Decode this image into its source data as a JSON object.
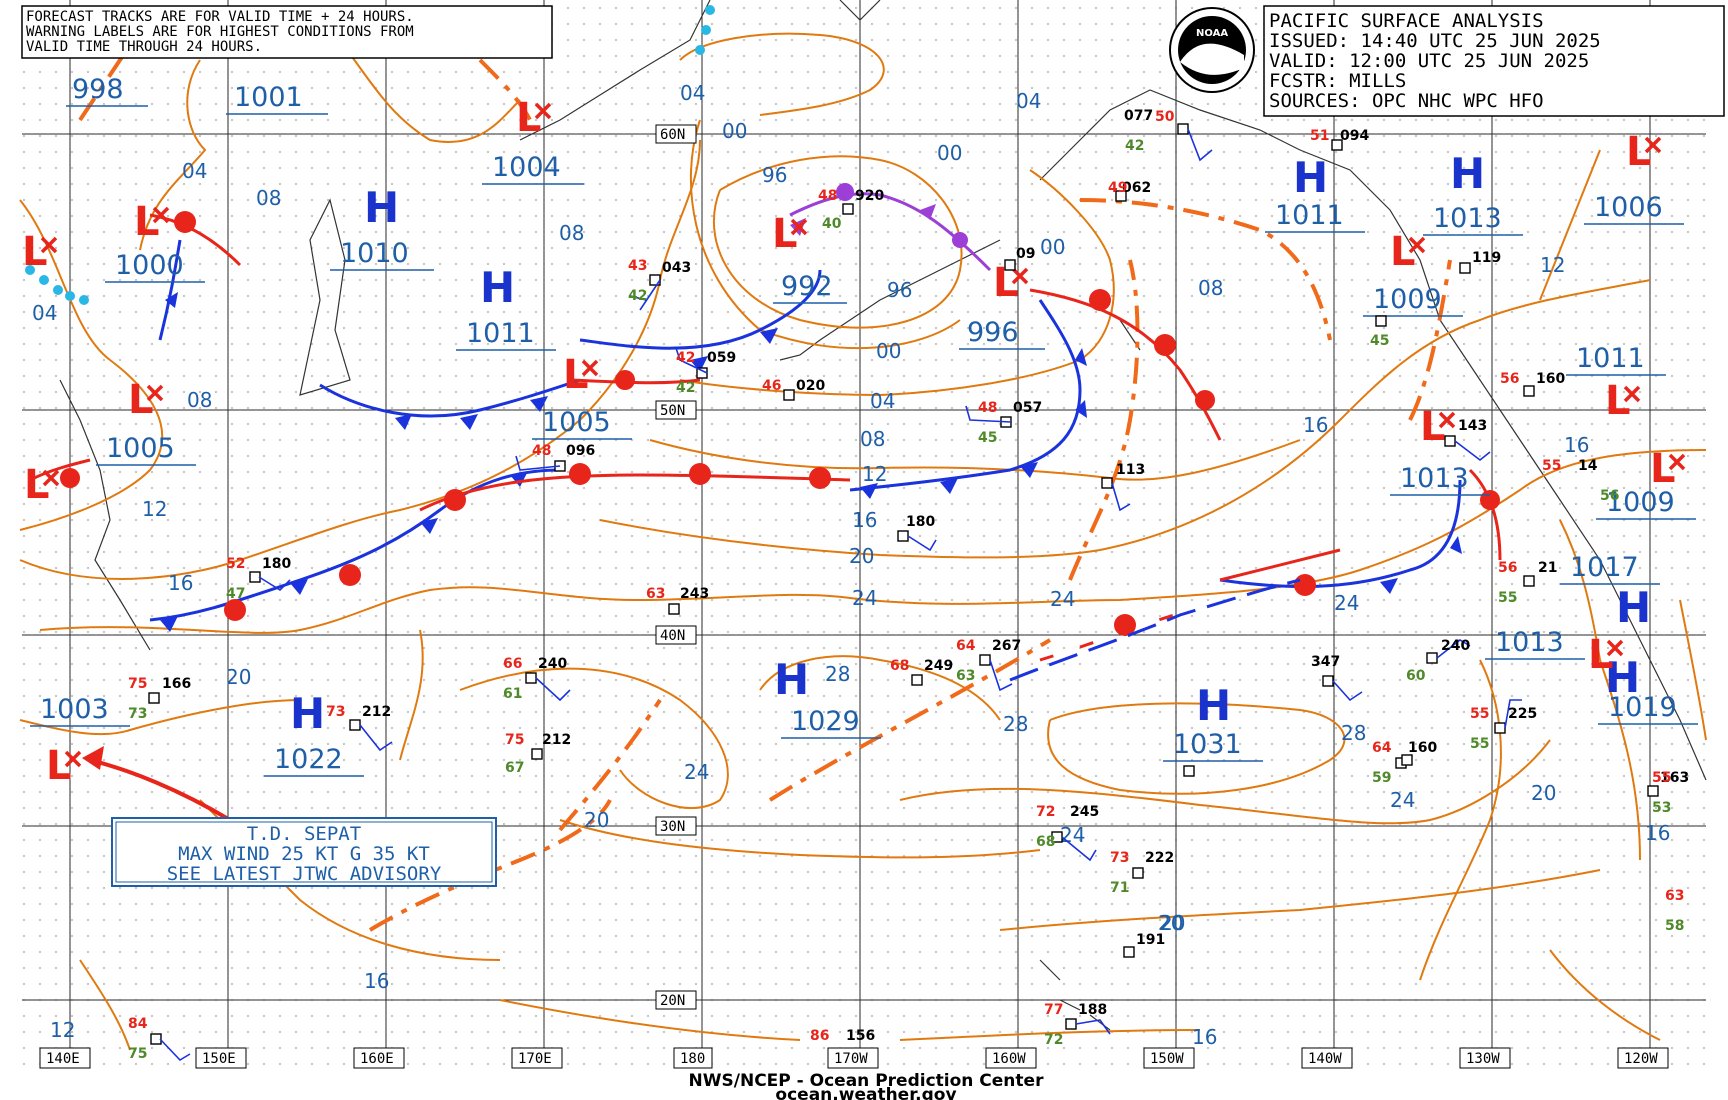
{
  "map": {
    "title_lines": [
      "PACIFIC SURFACE ANALYSIS",
      "ISSUED: 14:40 UTC 25 JUN 2025",
      "VALID:  12:00 UTC 25 JUN 2025",
      "FCSTR:  MILLS",
      "SOURCES: OPC NHC WPC HFO"
    ],
    "note_lines": [
      "FORECAST TRACKS ARE FOR VALID TIME + 24 HOURS.",
      "WARNING LABELS ARE FOR HIGHEST CONDITIONS FROM",
      "VALID TIME THROUGH 24 HOURS."
    ],
    "logo_text": "NOAA",
    "tropical_box": [
      "T.D. SEPAT",
      "MAX WIND 25 KT G 35 KT",
      "SEE LATEST JTWC ADVISORY"
    ],
    "footer": [
      "NWS/NCEP - Ocean Prediction Center",
      "ocean.weather.gov"
    ],
    "lon_labels": [
      "140E",
      "150E",
      "160E",
      "170E",
      "180",
      "170W",
      "160W",
      "150W",
      "140W",
      "130W",
      "120W"
    ],
    "lat_labels": [
      "60N",
      "50N",
      "40N",
      "30N",
      "20N"
    ],
    "colors": {
      "isobar": "#e07a10",
      "cold_front": "#1a33dd",
      "warm_front": "#e8251b",
      "occluded_front": "#9b3fd6",
      "label_text": "#1f5fa8",
      "high": "#1a33cc",
      "low": "#e8251b"
    },
    "pressure_labels": [
      "998",
      "1001",
      "1004",
      "1010",
      "1000",
      "1011",
      "1005",
      "992",
      "996",
      "1005",
      "1011",
      "1013",
      "1006",
      "1009",
      "1011",
      "1013",
      "1009",
      "1017",
      "1013",
      "1019",
      "1003",
      "1022",
      "1029",
      "1031"
    ],
    "isobar_labels": [
      "04",
      "08",
      "04",
      "08",
      "04",
      "08",
      "12",
      "16",
      "20",
      "00",
      "96",
      "96",
      "00",
      "04",
      "08",
      "12",
      "16",
      "20",
      "24",
      "28",
      "24",
      "20",
      "16",
      "12",
      "04",
      "00",
      "08",
      "16",
      "12",
      "24",
      "24",
      "28",
      "24",
      "20",
      "16",
      "20",
      "24",
      "28",
      "16",
      "16",
      "00",
      "20"
    ],
    "high_symbol": "H",
    "low_symbol": "L",
    "stations": [
      "077",
      "094",
      "09",
      "062",
      "043",
      "920",
      "059",
      "020",
      "057",
      "096",
      "113",
      "180",
      "180",
      "243",
      "267",
      "249",
      "240",
      "212",
      "166",
      "212",
      "245",
      "222",
      "191",
      "188",
      "156",
      "160",
      "225",
      "163",
      "347",
      "240",
      "21",
      "143",
      "160",
      "119",
      "14"
    ],
    "station_temps": [
      "50",
      "51",
      "43",
      "48",
      "42",
      "46",
      "48",
      "48",
      "52",
      "63",
      "64",
      "68",
      "66",
      "75",
      "75",
      "73",
      "72",
      "73",
      "77",
      "86",
      "84",
      "63",
      "64",
      "55",
      "56",
      "55",
      "56",
      "55",
      "49"
    ],
    "station_dews": [
      "42",
      "40",
      "42",
      "42",
      "45",
      "47",
      "61",
      "67",
      "73",
      "63",
      "71",
      "68",
      "72",
      "60",
      "59",
      "55",
      "56",
      "55",
      "53",
      "58",
      "75",
      "45"
    ]
  }
}
